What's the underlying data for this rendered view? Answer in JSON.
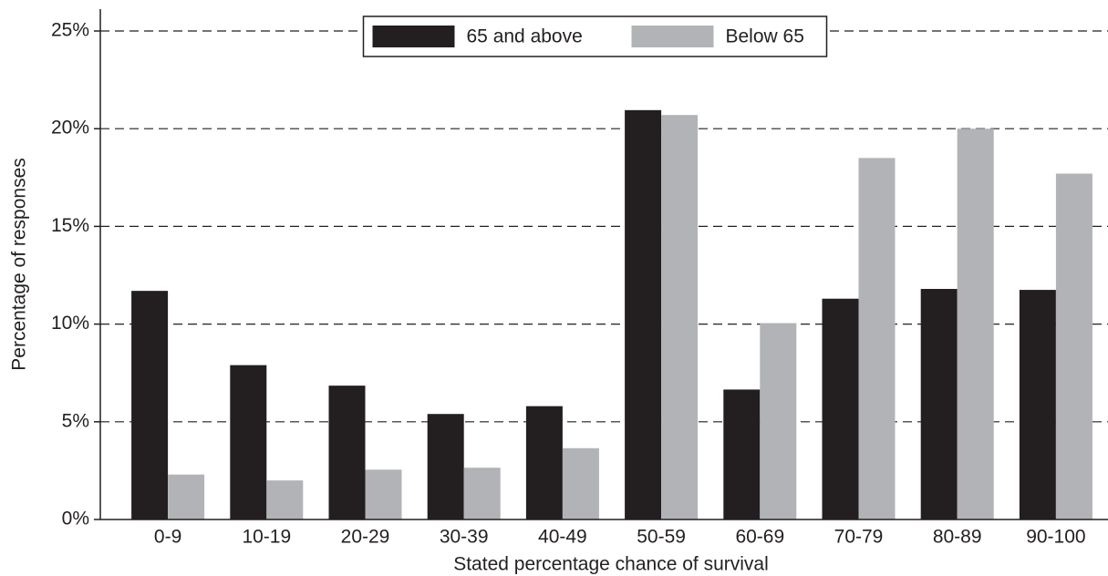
{
  "chart_data": {
    "type": "bar",
    "x_label": "Stated percentage chance of survival",
    "y_label": "Percentage of responses",
    "categories": [
      "0-9",
      "10-19",
      "20-29",
      "30-39",
      "40-49",
      "50-59",
      "60-69",
      "70-79",
      "80-89",
      "90-100"
    ],
    "series": [
      {
        "name": "65 and above",
        "color": "#231f20",
        "values": [
          11.7,
          7.9,
          6.85,
          5.4,
          5.8,
          20.95,
          6.65,
          11.3,
          11.8,
          11.75
        ]
      },
      {
        "name": "Below 65",
        "color": "#b1b3b6",
        "values": [
          2.3,
          2.0,
          2.55,
          2.65,
          3.65,
          20.7,
          10.05,
          18.5,
          20.0,
          17.7
        ]
      }
    ],
    "ylim": [
      0,
      25
    ],
    "yticks": [
      {
        "value": 0,
        "label": "0%"
      },
      {
        "value": 5,
        "label": "5%"
      },
      {
        "value": 10,
        "label": "10%"
      },
      {
        "value": 15,
        "label": "15%"
      },
      {
        "value": 20,
        "label": "20%"
      },
      {
        "value": 25,
        "label": "25%"
      }
    ],
    "grid": true,
    "legend": "top"
  }
}
